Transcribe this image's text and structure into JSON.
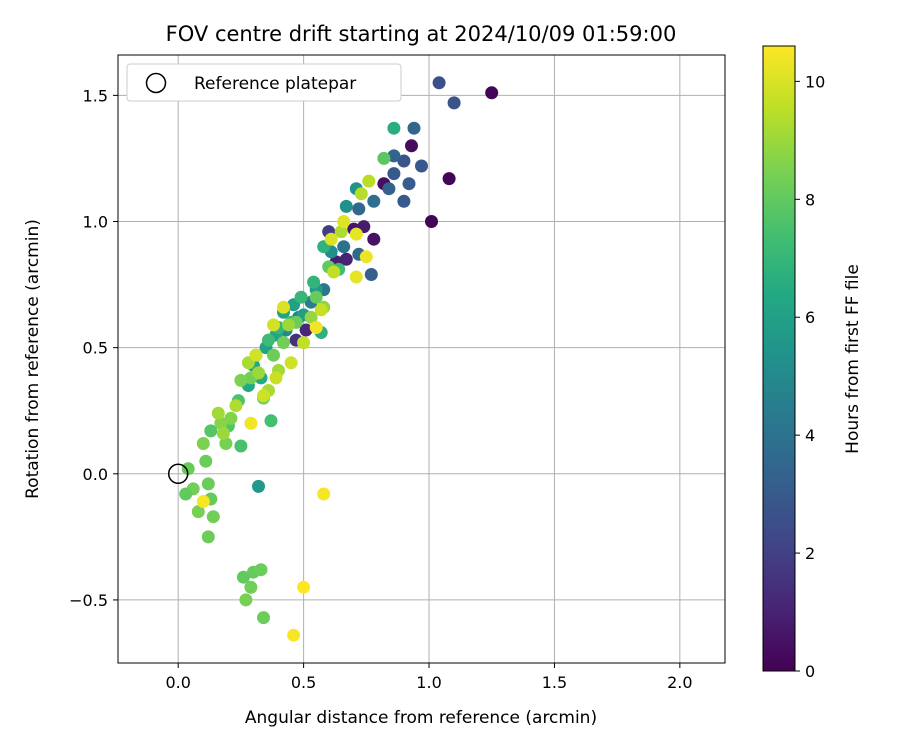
{
  "chart_data": {
    "type": "scatter",
    "title": "FOV centre drift starting at 2024/10/09 01:59:00",
    "xlabel": "Angular distance from reference (arcmin)",
    "ylabel": "Rotation from reference (arcmin)",
    "xlim": [
      -0.24,
      2.18
    ],
    "ylim": [
      -0.75,
      1.66
    ],
    "xticks": [
      0.0,
      0.5,
      1.0,
      1.5,
      2.0
    ],
    "xtick_labels": [
      "0.0",
      "0.5",
      "1.0",
      "1.5",
      "2.0"
    ],
    "yticks": [
      -0.5,
      0.0,
      0.5,
      1.0,
      1.5
    ],
    "ytick_labels": [
      "−0.5",
      "0.0",
      "0.5",
      "1.0",
      "1.5"
    ],
    "grid": true,
    "legend": {
      "position": "top-left",
      "label": "Reference platepar"
    },
    "reference_point": {
      "x": 0.0,
      "y": 0.0,
      "marker": "open-circle"
    },
    "colorbar": {
      "label": "Hours from first FF file",
      "colormap": "viridis",
      "range": [
        0,
        10.6
      ],
      "ticks": [
        0,
        2,
        4,
        6,
        8,
        10
      ],
      "tick_labels": [
        "0",
        "2",
        "4",
        "6",
        "8",
        "10"
      ]
    },
    "points": [
      {
        "x": 1.25,
        "y": 1.51,
        "h": 0.1
      },
      {
        "x": 1.08,
        "y": 1.17,
        "h": 0.1
      },
      {
        "x": 1.01,
        "y": 1.0,
        "h": 0.1
      },
      {
        "x": 0.93,
        "y": 1.3,
        "h": 0.3
      },
      {
        "x": 0.82,
        "y": 1.15,
        "h": 0.4
      },
      {
        "x": 0.78,
        "y": 0.93,
        "h": 0.5
      },
      {
        "x": 0.7,
        "y": 0.97,
        "h": 0.6
      },
      {
        "x": 0.74,
        "y": 0.98,
        "h": 0.8
      },
      {
        "x": 0.67,
        "y": 0.85,
        "h": 1.0
      },
      {
        "x": 0.63,
        "y": 0.84,
        "h": 0.9
      },
      {
        "x": 0.51,
        "y": 0.57,
        "h": 1.1
      },
      {
        "x": 0.47,
        "y": 0.53,
        "h": 1.5
      },
      {
        "x": 0.6,
        "y": 0.96,
        "h": 1.9
      },
      {
        "x": 1.04,
        "y": 1.55,
        "h": 2.6
      },
      {
        "x": 1.1,
        "y": 1.47,
        "h": 2.7
      },
      {
        "x": 0.9,
        "y": 1.24,
        "h": 2.8
      },
      {
        "x": 0.97,
        "y": 1.22,
        "h": 2.9
      },
      {
        "x": 0.86,
        "y": 1.19,
        "h": 3.0
      },
      {
        "x": 0.92,
        "y": 1.15,
        "h": 3.1
      },
      {
        "x": 0.9,
        "y": 1.08,
        "h": 3.0
      },
      {
        "x": 0.77,
        "y": 0.79,
        "h": 3.2
      },
      {
        "x": 0.84,
        "y": 1.13,
        "h": 3.3
      },
      {
        "x": 0.86,
        "y": 1.26,
        "h": 3.4
      },
      {
        "x": 0.94,
        "y": 1.37,
        "h": 3.5
      },
      {
        "x": 0.72,
        "y": 0.87,
        "h": 3.6
      },
      {
        "x": 0.78,
        "y": 1.08,
        "h": 3.8
      },
      {
        "x": 0.72,
        "y": 1.05,
        "h": 3.6
      },
      {
        "x": 0.66,
        "y": 0.9,
        "h": 4.0
      },
      {
        "x": 0.58,
        "y": 0.73,
        "h": 4.2
      },
      {
        "x": 0.53,
        "y": 0.68,
        "h": 4.5
      },
      {
        "x": 0.48,
        "y": 0.62,
        "h": 4.8
      },
      {
        "x": 0.43,
        "y": 0.57,
        "h": 4.9
      },
      {
        "x": 0.31,
        "y": 0.47,
        "h": 5.0
      },
      {
        "x": 0.61,
        "y": 0.88,
        "h": 5.2
      },
      {
        "x": 0.67,
        "y": 1.06,
        "h": 5.3
      },
      {
        "x": 0.71,
        "y": 1.13,
        "h": 5.4
      },
      {
        "x": 0.32,
        "y": -0.05,
        "h": 5.6
      },
      {
        "x": 0.55,
        "y": 0.73,
        "h": 5.8
      },
      {
        "x": 0.5,
        "y": 0.63,
        "h": 5.9
      },
      {
        "x": 0.46,
        "y": 0.67,
        "h": 6.0
      },
      {
        "x": 0.42,
        "y": 0.64,
        "h": 6.1
      },
      {
        "x": 0.39,
        "y": 0.55,
        "h": 6.2
      },
      {
        "x": 0.35,
        "y": 0.5,
        "h": 6.1
      },
      {
        "x": 0.3,
        "y": 0.43,
        "h": 6.3
      },
      {
        "x": 0.28,
        "y": 0.35,
        "h": 6.4
      },
      {
        "x": 0.33,
        "y": 0.38,
        "h": 6.5
      },
      {
        "x": 0.86,
        "y": 1.37,
        "h": 6.6
      },
      {
        "x": 0.57,
        "y": 0.56,
        "h": 6.7
      },
      {
        "x": 0.58,
        "y": 0.9,
        "h": 6.8
      },
      {
        "x": 0.54,
        "y": 0.76,
        "h": 6.9
      },
      {
        "x": 0.49,
        "y": 0.7,
        "h": 7.0
      },
      {
        "x": 0.45,
        "y": 0.6,
        "h": 7.1
      },
      {
        "x": 0.4,
        "y": 0.58,
        "h": 7.0
      },
      {
        "x": 0.36,
        "y": 0.53,
        "h": 7.2
      },
      {
        "x": 0.64,
        "y": 0.81,
        "h": 7.3
      },
      {
        "x": 0.37,
        "y": 0.21,
        "h": 7.4
      },
      {
        "x": 0.25,
        "y": 0.11,
        "h": 7.5
      },
      {
        "x": 0.24,
        "y": 0.29,
        "h": 7.6
      },
      {
        "x": 0.2,
        "y": 0.19,
        "h": 7.7
      },
      {
        "x": 0.13,
        "y": 0.17,
        "h": 7.8
      },
      {
        "x": 0.82,
        "y": 1.25,
        "h": 7.9
      },
      {
        "x": 0.6,
        "y": 0.82,
        "h": 8.0
      },
      {
        "x": 0.55,
        "y": 0.7,
        "h": 8.1
      },
      {
        "x": 0.47,
        "y": 0.6,
        "h": 8.2
      },
      {
        "x": 0.42,
        "y": 0.52,
        "h": 8.3
      },
      {
        "x": 0.38,
        "y": 0.47,
        "h": 8.2
      },
      {
        "x": 0.34,
        "y": 0.3,
        "h": 8.4
      },
      {
        "x": 0.29,
        "y": 0.38,
        "h": 8.3
      },
      {
        "x": 0.25,
        "y": 0.37,
        "h": 8.5
      },
      {
        "x": 0.21,
        "y": 0.22,
        "h": 8.6
      },
      {
        "x": 0.17,
        "y": 0.2,
        "h": 8.7
      },
      {
        "x": 0.19,
        "y": 0.12,
        "h": 8.4
      },
      {
        "x": 0.1,
        "y": 0.12,
        "h": 8.5
      },
      {
        "x": 0.11,
        "y": 0.05,
        "h": 8.2
      },
      {
        "x": 0.04,
        "y": 0.02,
        "h": 8.1
      },
      {
        "x": 0.06,
        "y": -0.06,
        "h": 8.3
      },
      {
        "x": 0.03,
        "y": -0.08,
        "h": 8.0
      },
      {
        "x": 0.08,
        "y": -0.15,
        "h": 8.4
      },
      {
        "x": 0.12,
        "y": -0.04,
        "h": 8.2
      },
      {
        "x": 0.13,
        "y": -0.1,
        "h": 8.1
      },
      {
        "x": 0.14,
        "y": -0.17,
        "h": 8.3
      },
      {
        "x": 0.12,
        "y": -0.25,
        "h": 8.2
      },
      {
        "x": 0.26,
        "y": -0.41,
        "h": 8.0
      },
      {
        "x": 0.3,
        "y": -0.39,
        "h": 8.1
      },
      {
        "x": 0.33,
        "y": -0.38,
        "h": 8.2
      },
      {
        "x": 0.29,
        "y": -0.45,
        "h": 8.3
      },
      {
        "x": 0.27,
        "y": -0.5,
        "h": 8.4
      },
      {
        "x": 0.34,
        "y": -0.57,
        "h": 8.2
      },
      {
        "x": 0.58,
        "y": 0.66,
        "h": 8.8
      },
      {
        "x": 0.53,
        "y": 0.62,
        "h": 8.9
      },
      {
        "x": 0.44,
        "y": 0.59,
        "h": 9.0
      },
      {
        "x": 0.4,
        "y": 0.41,
        "h": 9.1
      },
      {
        "x": 0.36,
        "y": 0.33,
        "h": 9.2
      },
      {
        "x": 0.32,
        "y": 0.4,
        "h": 9.0
      },
      {
        "x": 0.28,
        "y": 0.44,
        "h": 9.2
      },
      {
        "x": 0.23,
        "y": 0.27,
        "h": 9.3
      },
      {
        "x": 0.16,
        "y": 0.24,
        "h": 9.1
      },
      {
        "x": 0.18,
        "y": 0.16,
        "h": 9.0
      },
      {
        "x": 0.65,
        "y": 0.96,
        "h": 9.3
      },
      {
        "x": 0.73,
        "y": 1.11,
        "h": 9.4
      },
      {
        "x": 0.76,
        "y": 1.16,
        "h": 9.5
      },
      {
        "x": 0.62,
        "y": 0.8,
        "h": 9.6
      },
      {
        "x": 0.57,
        "y": 0.65,
        "h": 9.7
      },
      {
        "x": 0.5,
        "y": 0.52,
        "h": 9.6
      },
      {
        "x": 0.45,
        "y": 0.44,
        "h": 9.8
      },
      {
        "x": 0.39,
        "y": 0.38,
        "h": 9.7
      },
      {
        "x": 0.34,
        "y": 0.31,
        "h": 9.8
      },
      {
        "x": 0.31,
        "y": 0.47,
        "h": 9.9
      },
      {
        "x": 0.42,
        "y": 0.66,
        "h": 10.0
      },
      {
        "x": 0.38,
        "y": 0.59,
        "h": 9.9
      },
      {
        "x": 0.61,
        "y": 0.93,
        "h": 10.0
      },
      {
        "x": 0.66,
        "y": 1.0,
        "h": 10.1
      },
      {
        "x": 0.71,
        "y": 0.95,
        "h": 10.2
      },
      {
        "x": 0.75,
        "y": 0.86,
        "h": 10.3
      },
      {
        "x": 0.71,
        "y": 0.78,
        "h": 10.2
      },
      {
        "x": 0.55,
        "y": 0.58,
        "h": 10.4
      },
      {
        "x": 0.29,
        "y": 0.2,
        "h": 10.4
      },
      {
        "x": 0.1,
        "y": -0.11,
        "h": 10.5
      },
      {
        "x": 0.58,
        "y": -0.08,
        "h": 10.5
      },
      {
        "x": 0.5,
        "y": -0.45,
        "h": 10.6
      },
      {
        "x": 0.46,
        "y": -0.64,
        "h": 10.5
      }
    ]
  }
}
